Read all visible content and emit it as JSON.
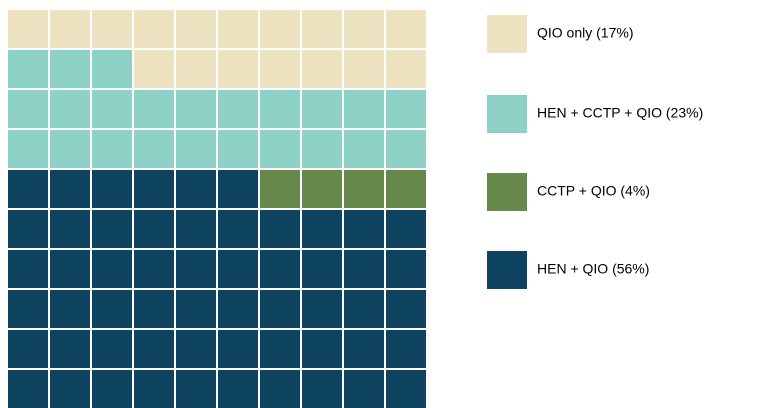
{
  "chart_data": {
    "type": "waffle",
    "rows": 10,
    "columns": 10,
    "series": [
      {
        "name": "QIO only (17%)",
        "color": "#ede3c0",
        "value": 17
      },
      {
        "name": "HEN + CCTP + QIO (23%)",
        "color": "#8ed1c6",
        "value": 23
      },
      {
        "name": "CCTP + QIO (4%)",
        "color": "#66884a",
        "value": 4
      },
      {
        "name": "HEN + QIO (56%)",
        "color": "#0f4461",
        "value": 56
      }
    ]
  }
}
